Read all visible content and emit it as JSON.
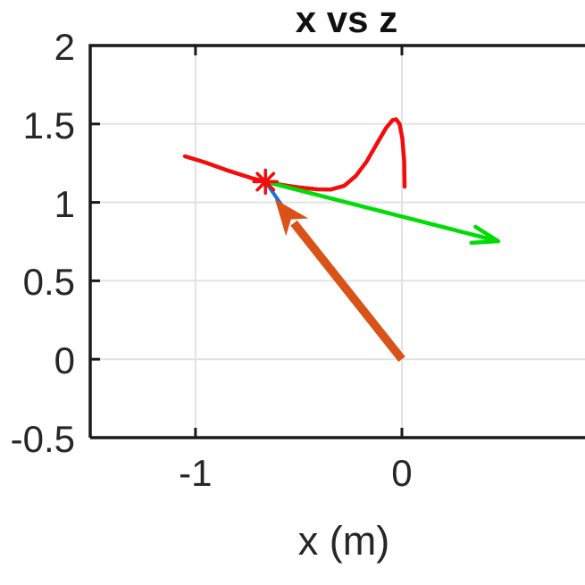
{
  "figure": {
    "title": "x vs z",
    "xlabel": "x (m)"
  },
  "chart_data": {
    "type": "line",
    "title": "x vs z",
    "xlabel": "x (m)",
    "ylabel": "",
    "xlim": [
      -1.51,
      0.887
    ],
    "ylim": [
      -0.5,
      2
    ],
    "xticks": [
      -1,
      0
    ],
    "xticklabels": [
      "-1",
      "0"
    ],
    "yticks": [
      2,
      1.5,
      1,
      0.5,
      0,
      -0.5
    ],
    "yticklabels": [
      "2",
      "1.5",
      "1",
      "0.5",
      "0",
      "-0.5"
    ],
    "grid": true,
    "axis_color": "#1a1a1a",
    "grid_color": "#e2e2e2",
    "tick_label_color": "#262626",
    "series": [
      {
        "name": "heading-vector-blue",
        "type": "arrow",
        "style": "plain",
        "color": "#1b6fde",
        "width": 4,
        "from": [
          -0.661,
          1.132
        ],
        "to": [
          -0.555,
          0.93
        ]
      },
      {
        "name": "thrust-vector-orange",
        "type": "arrow",
        "style": "solid-head",
        "color": "#d95319",
        "width": 9.5,
        "head_length": 40,
        "head_half_width": 16,
        "from": [
          0.0,
          0.0
        ],
        "to": [
          -0.615,
          1.02
        ]
      },
      {
        "name": "trajectory-red",
        "type": "line",
        "color": "#f40b0b",
        "width": 4.5,
        "points": [
          [
            -1.051,
            1.294
          ],
          [
            -0.951,
            1.254
          ],
          [
            -0.843,
            1.203
          ],
          [
            -0.734,
            1.157
          ],
          [
            -0.661,
            1.132
          ],
          [
            -0.583,
            1.112
          ],
          [
            -0.496,
            1.095
          ],
          [
            -0.409,
            1.083
          ],
          [
            -0.344,
            1.082
          ],
          [
            -0.279,
            1.106
          ],
          [
            -0.223,
            1.169
          ],
          [
            -0.171,
            1.26
          ],
          [
            -0.119,
            1.379
          ],
          [
            -0.076,
            1.476
          ],
          [
            -0.045,
            1.525
          ],
          [
            -0.028,
            1.53
          ],
          [
            -0.011,
            1.499
          ],
          [
            0.002,
            1.408
          ],
          [
            0.011,
            1.265
          ],
          [
            0.013,
            1.1
          ]
        ]
      },
      {
        "name": "velocity-vector-green",
        "type": "arrow",
        "style": "open-head",
        "color": "#00dc05",
        "width": 4.5,
        "head_length": 30,
        "head_angle_deg": 18,
        "from": [
          -0.661,
          1.132
        ],
        "to": [
          0.466,
          0.753
        ]
      },
      {
        "name": "position-marker",
        "type": "marker",
        "marker": "asterisk",
        "color": "#f40b0b",
        "size": 13,
        "width": 3.5,
        "at": [
          -0.661,
          1.132
        ]
      }
    ]
  }
}
